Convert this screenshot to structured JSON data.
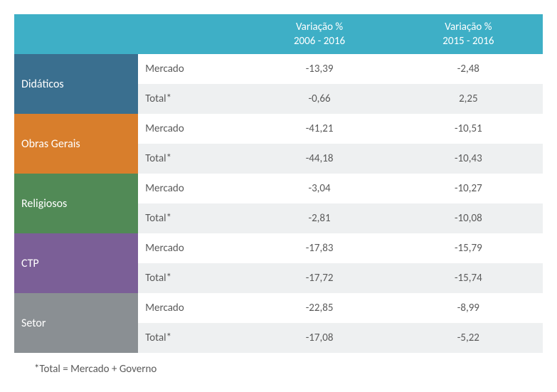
{
  "header": {
    "col1_line1": "Variação %",
    "col1_line2": "2006 - 2016",
    "col2_line1": "Variação %",
    "col2_line2": "2015 - 2016"
  },
  "sublabels": {
    "mercado": "Mercado",
    "total": "Total*"
  },
  "categories": [
    {
      "name": "Didáticos",
      "color": "#3a6f8f",
      "mercado": {
        "v1": "-13,39",
        "v2": "-2,48"
      },
      "total": {
        "v1": "-0,66",
        "v2": "2,25"
      }
    },
    {
      "name": "Obras  Gerais",
      "color": "#d87e2c",
      "mercado": {
        "v1": "-41,21",
        "v2": "-10,51"
      },
      "total": {
        "v1": "-44,18",
        "v2": "-10,43"
      }
    },
    {
      "name": "Religiosos",
      "color": "#518a56",
      "mercado": {
        "v1": "-3,04",
        "v2": "-10,27"
      },
      "total": {
        "v1": "-2,81",
        "v2": "-10,08"
      }
    },
    {
      "name": "CTP",
      "color": "#7b5f97",
      "mercado": {
        "v1": "-17,83",
        "v2": "-15,79"
      },
      "total": {
        "v1": "-17,72",
        "v2": "-15,74"
      }
    },
    {
      "name": "Setor",
      "color": "#8a8f93",
      "mercado": {
        "v1": "-22,85",
        "v2": "-8,99"
      },
      "total": {
        "v1": "-17,08",
        "v2": "-5,22"
      }
    }
  ],
  "footnote": "*Total = Mercado + Governo",
  "styles": {
    "header_bg": "#3eafc6",
    "row_alt_bg": "#eef0f1",
    "row_bg": "#ffffff",
    "text_color": "#5a5a5a",
    "header_text_color": "#ffffff",
    "font_family": "Calibri",
    "cell_font_size_pt": 11,
    "cat_font_size_pt": 12
  }
}
